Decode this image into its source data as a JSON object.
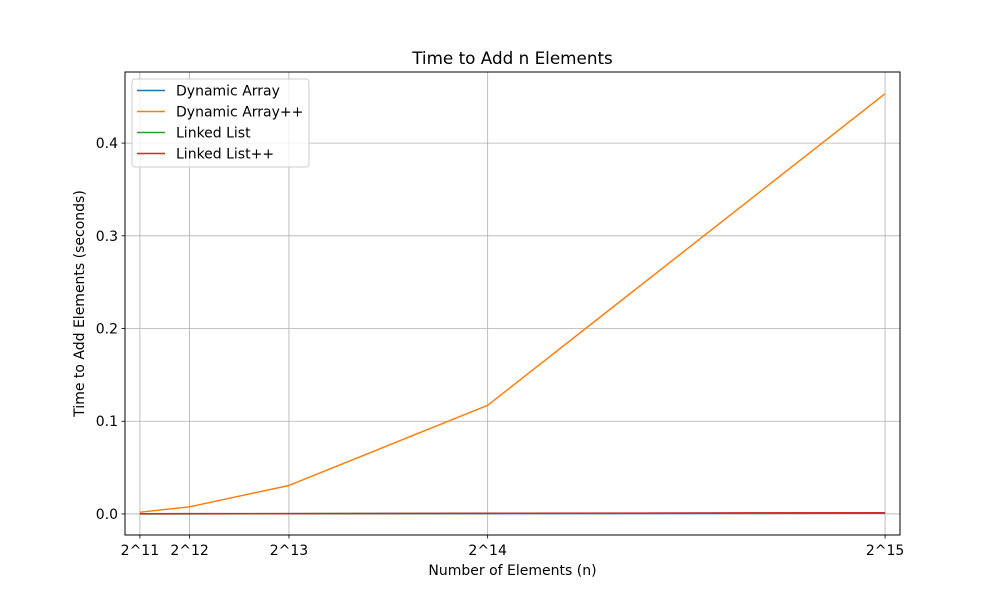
{
  "chart_data": {
    "type": "line",
    "title": "Time to Add n Elements",
    "xlabel": "Number of Elements (n)",
    "ylabel": "Time to Add Elements (seconds)",
    "x": [
      2048,
      4096,
      8192,
      16384,
      32768
    ],
    "x_tick_labels": [
      "2^11",
      "2^12",
      "2^13",
      "2^14",
      "2^15"
    ],
    "xlim": [
      1433.6,
      33382.4
    ],
    "ylim": [
      -0.0227,
      0.4767
    ],
    "y_ticks": [
      0.0,
      0.1,
      0.2,
      0.3,
      0.4
    ],
    "y_tick_labels": [
      "0.0",
      "0.1",
      "0.2",
      "0.3",
      "0.4"
    ],
    "grid": true,
    "legend_position": "top-left",
    "series": [
      {
        "name": "Dynamic Array",
        "color": "#1f77b4",
        "values": [
          0.0001,
          0.0001,
          0.0002,
          0.0004,
          0.0008
        ]
      },
      {
        "name": "Dynamic Array++",
        "color": "#ff7f0e",
        "values": [
          0.0019,
          0.0077,
          0.0307,
          0.1172,
          0.4533
        ]
      },
      {
        "name": "Linked List",
        "color": "#2ca02c",
        "values": [
          0.0001,
          0.0002,
          0.0003,
          0.0006,
          0.0012
        ]
      },
      {
        "name": "Linked List++",
        "color": "#d62728",
        "values": [
          0.0002,
          0.0003,
          0.0004,
          0.0007,
          0.0013
        ]
      }
    ]
  }
}
